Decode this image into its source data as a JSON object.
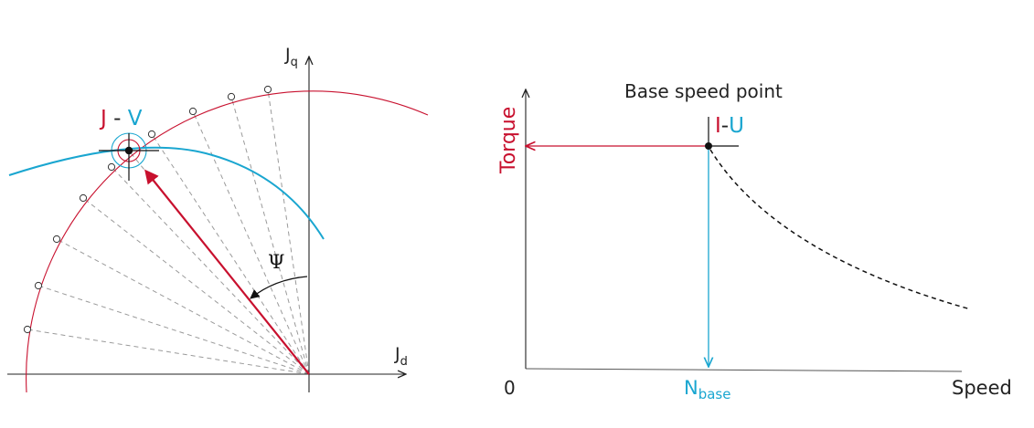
{
  "colors": {
    "current": "#c8102e",
    "voltage": "#1aa6d0",
    "axis": "#222222",
    "guide": "#9a9a9a"
  },
  "left_diagram": {
    "axis_q_label": "J",
    "axis_q_sub": "q",
    "axis_d_label": "J",
    "axis_d_sub": "d",
    "point_label_current": "J",
    "point_label_sep": " - ",
    "point_label_voltage": "V",
    "angle_label": "Ψ"
  },
  "right_diagram": {
    "title": "Base speed point",
    "y_label": "Torque",
    "x_label": "Speed",
    "origin_label": "0",
    "nbase_main": "N",
    "nbase_sub": "base",
    "point_label_current": "I",
    "point_label_sep": "-",
    "point_label_voltage": "U"
  }
}
